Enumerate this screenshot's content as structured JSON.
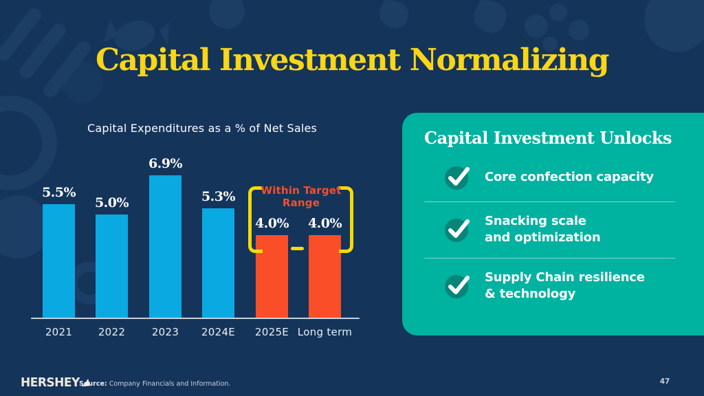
{
  "slide": {
    "title": "Capital Investment Normalizing",
    "page_number": "47",
    "footer": {
      "logo_text": "HERSHEY",
      "source_label": "Source:",
      "source_text": "Company Financials and Information."
    }
  },
  "chart_data": {
    "type": "bar",
    "title": "Capital Expenditures as a % of Net Sales",
    "categories": [
      "2021",
      "2022",
      "2023",
      "2024E",
      "2025E",
      "Long term"
    ],
    "values": [
      5.5,
      5.0,
      6.9,
      5.3,
      4.0,
      4.0
    ],
    "value_labels": [
      "5.5%",
      "5.0%",
      "6.9%",
      "5.3%",
      "4.0%",
      "4.0%"
    ],
    "bar_colors": [
      "#0AA9E2",
      "#0AA9E2",
      "#0AA9E2",
      "#0AA9E2",
      "#F94E27",
      "#F94E27"
    ],
    "annotation": "Within Target Range",
    "annotation_lines": [
      "Within Target",
      "Range"
    ],
    "annotation_applies_to": [
      "2025E",
      "Long term"
    ],
    "xlabel": "",
    "ylabel": "",
    "ylim": [
      0,
      7.5
    ],
    "grid": false,
    "legend": "none"
  },
  "card": {
    "heading": "Capital Investment Unlocks",
    "items": [
      {
        "label": "Core confection capacity",
        "lines": [
          "Core confection capacity"
        ]
      },
      {
        "label": "Snacking scale and optimization",
        "lines": [
          "Snacking scale",
          "and optimization"
        ]
      },
      {
        "label": "Supply Chain resilience & technology",
        "lines": [
          "Supply Chain resilience",
          "& technology"
        ]
      }
    ]
  },
  "colors": {
    "background": "#14345A",
    "pattern": "#24486F",
    "title_yellow": "#F9D616",
    "bar_blue": "#0AA9E2",
    "bar_orange": "#F94E27",
    "annotation_orange": "#F4502C",
    "bracket_yellow": "#F5D908",
    "card_teal": "#00B2A0",
    "check_circle_teal": "#068578",
    "axis_line": "#C6D2DE"
  }
}
